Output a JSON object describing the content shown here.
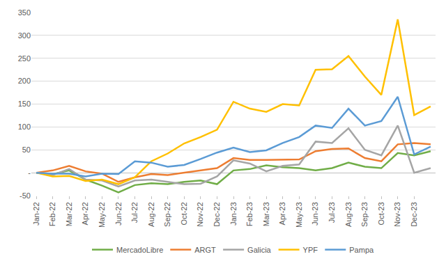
{
  "chart_data": {
    "type": "line",
    "categories": [
      "Jan-22",
      "Feb-22",
      "Mar-22",
      "Apr-22",
      "May-22",
      "Jun-22",
      "Jul-22",
      "Aug-22",
      "Sep-22",
      "Oct-22",
      "Nov-22",
      "Dec-22",
      "Jan-23",
      "Feb-23",
      "Mar-23",
      "Apr-23",
      "May-23",
      "Jun-23",
      "Jul-23",
      "Aug-23",
      "Sep-23",
      "Oct-23",
      "Nov-23",
      "Dec-23",
      null
    ],
    "series": [
      {
        "name": "MercadoLibre",
        "color": "#70AD47",
        "values": [
          0,
          -3,
          5,
          -15,
          -28,
          -43,
          -27,
          -23,
          -25,
          -20,
          -17,
          -25,
          5,
          8,
          16,
          12,
          10,
          5,
          10,
          22,
          13,
          10,
          43,
          38,
          47
        ]
      },
      {
        "name": "ARGT",
        "color": "#ED7D31",
        "values": [
          0,
          5,
          15,
          3,
          -2,
          -20,
          -10,
          -3,
          -5,
          0,
          5,
          10,
          32,
          28,
          28,
          28,
          29,
          47,
          52,
          53,
          32,
          25,
          62,
          65,
          62
        ]
      },
      {
        "name": "Galicia",
        "color": "#A5A5A5",
        "values": [
          0,
          -5,
          8,
          -15,
          -17,
          -30,
          -17,
          -15,
          -20,
          -25,
          -24,
          -8,
          27,
          20,
          3,
          15,
          18,
          68,
          65,
          97,
          50,
          38,
          103,
          0,
          10
        ]
      },
      {
        "name": "YPF",
        "color": "#FFC000",
        "values": [
          0,
          -8,
          -7,
          -18,
          -15,
          -25,
          -10,
          25,
          42,
          64,
          78,
          94,
          155,
          140,
          133,
          150,
          147,
          225,
          226,
          255,
          210,
          170,
          335,
          126,
          145
        ]
      },
      {
        "name": "Pampa",
        "color": "#5B9BD5",
        "values": [
          0,
          -2,
          -2,
          -8,
          -2,
          -3,
          25,
          22,
          13,
          17,
          30,
          44,
          55,
          45,
          49,
          65,
          78,
          103,
          98,
          140,
          103,
          113,
          166,
          40,
          57
        ]
      }
    ],
    "ylim": [
      -50,
      350
    ],
    "yticks": [
      -50,
      {
        "value": 0,
        "label": "-"
      },
      50,
      100,
      150,
      200,
      250,
      300,
      350
    ],
    "grid": true,
    "legend": "bottom"
  }
}
